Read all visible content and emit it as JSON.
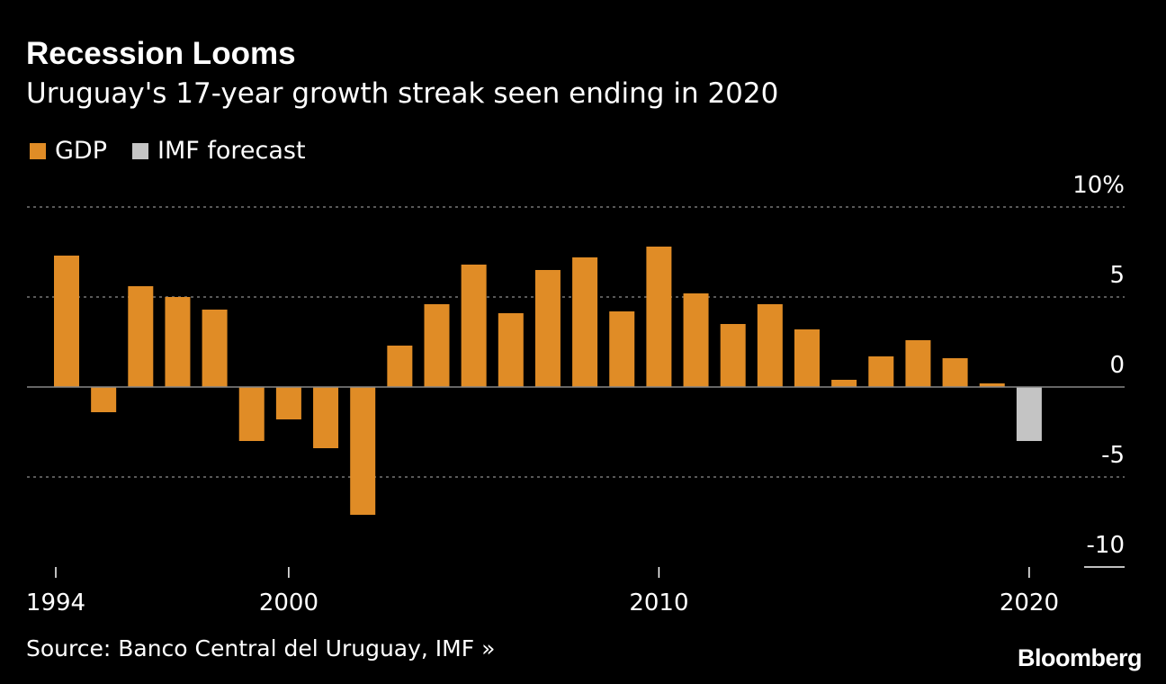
{
  "title": "Recession Looms",
  "subtitle": "Uruguay's 17-year growth streak seen ending in 2020",
  "legend": [
    {
      "label": "GDP",
      "color": "#e08c26"
    },
    {
      "label": "IMF forecast",
      "color": "#c4c4c4"
    }
  ],
  "source": "Source: Banco Central del Uruguay, IMF »",
  "brand": "Bloomberg",
  "chart_data": {
    "type": "bar",
    "x": [
      1994,
      1995,
      1996,
      1997,
      1998,
      1999,
      2000,
      2001,
      2002,
      2003,
      2004,
      2005,
      2006,
      2007,
      2008,
      2009,
      2010,
      2011,
      2012,
      2013,
      2014,
      2015,
      2016,
      2017,
      2018,
      2019,
      2020
    ],
    "series": [
      {
        "name": "GDP",
        "color": "#e08c26",
        "values": [
          7.3,
          -1.4,
          5.6,
          5.0,
          4.3,
          -3.0,
          -1.8,
          -3.4,
          -7.1,
          2.3,
          4.6,
          6.8,
          4.1,
          6.5,
          7.2,
          4.2,
          7.8,
          5.2,
          3.5,
          4.6,
          3.2,
          0.4,
          1.7,
          2.6,
          1.6,
          0.2,
          null
        ]
      },
      {
        "name": "IMF forecast",
        "color": "#c4c4c4",
        "values": [
          null,
          null,
          null,
          null,
          null,
          null,
          null,
          null,
          null,
          null,
          null,
          null,
          null,
          null,
          null,
          null,
          null,
          null,
          null,
          null,
          null,
          null,
          null,
          null,
          null,
          null,
          -3.0
        ]
      }
    ],
    "y_ticks": [
      {
        "value": 10,
        "label": "10%"
      },
      {
        "value": 5,
        "label": "5"
      },
      {
        "value": 0,
        "label": "0"
      },
      {
        "value": -5,
        "label": "-5"
      },
      {
        "value": -10,
        "label": "-10"
      }
    ],
    "x_tick_labels": [
      {
        "value": 1994,
        "label": "1994"
      },
      {
        "value": 2000,
        "label": "2000"
      },
      {
        "value": 2010,
        "label": "2010"
      },
      {
        "value": 2020,
        "label": "2020"
      }
    ],
    "ylim": [
      -10,
      10
    ],
    "grid": true,
    "zero_line_color": "#888888",
    "grid_color": "#777777",
    "axis_label_color": "#ffffff"
  }
}
